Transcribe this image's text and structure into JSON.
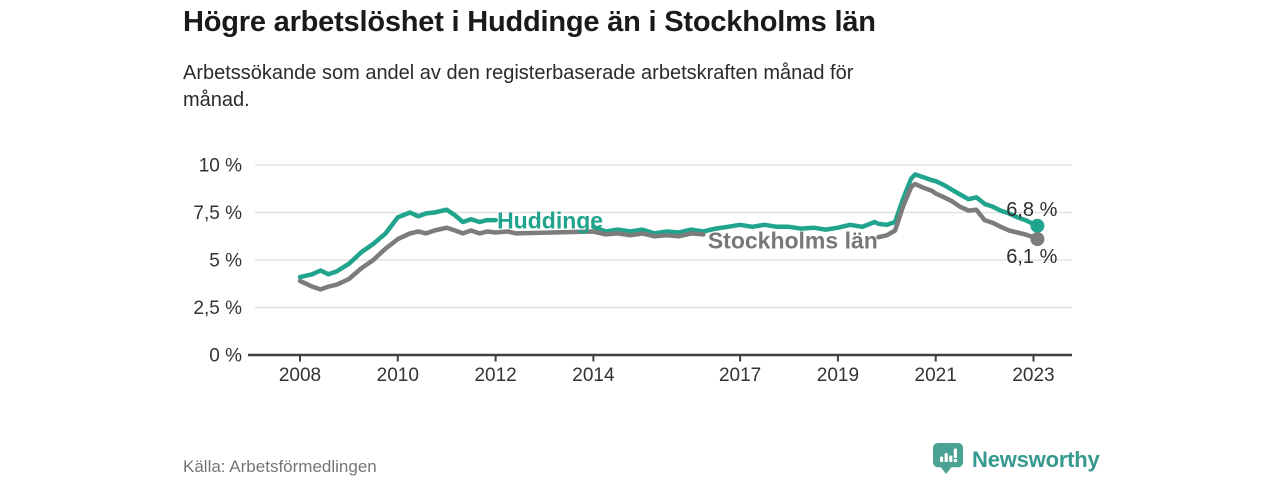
{
  "page": {
    "title": "Högre arbetslöshet i Huddinge än i Stockholms län",
    "subtitle": "Arbetssökande som andel av den registerbaserade arbetskraften månad för\nmånad.",
    "source": "Källa: Arbetsförmedlingen",
    "brand": "Newsworthy"
  },
  "colors": {
    "huddinge": "#20a48d",
    "stockholm": "#7c7c7c",
    "axis": "#3f3f3f",
    "grid": "#dedede",
    "tick_text": "#333333",
    "end_label_text": "#2e2e2e",
    "brand_teal": "#35998e"
  },
  "chart_data": {
    "type": "line",
    "title": "Högre arbetslöshet i Huddinge än i Stockholms län",
    "xlabel": "",
    "ylabel": "",
    "ylim": [
      0,
      10
    ],
    "xlim": [
      2006.94,
      2023.79
    ],
    "grid": true,
    "legend_position": "inline",
    "yticks": [
      {
        "value": 0,
        "label": "0 %"
      },
      {
        "value": 2.5,
        "label": "2,5 %"
      },
      {
        "value": 5,
        "label": "5 %"
      },
      {
        "value": 7.5,
        "label": "7,5 %"
      },
      {
        "value": 10,
        "label": "10 %"
      }
    ],
    "xticks": [
      {
        "value": 2008,
        "label": "2008"
      },
      {
        "value": 2010,
        "label": "2010"
      },
      {
        "value": 2012,
        "label": "2012"
      },
      {
        "value": 2014,
        "label": "2014"
      },
      {
        "value": 2017,
        "label": "2017"
      },
      {
        "value": 2019,
        "label": "2019"
      },
      {
        "value": 2021,
        "label": "2021"
      },
      {
        "value": 2023,
        "label": "2023"
      }
    ],
    "x": [
      2008.0,
      2008.25,
      2008.42,
      2008.58,
      2008.75,
      2009.0,
      2009.25,
      2009.5,
      2009.75,
      2010.0,
      2010.25,
      2010.42,
      2010.58,
      2010.75,
      2011.0,
      2011.17,
      2011.33,
      2011.5,
      2011.67,
      2011.83,
      2012.0,
      2012.25,
      2012.42,
      2014.0,
      2014.25,
      2014.5,
      2014.75,
      2015.0,
      2015.25,
      2015.5,
      2015.75,
      2016.0,
      2016.25,
      2016.5,
      2016.75,
      2017.0,
      2017.25,
      2017.5,
      2017.75,
      2018.0,
      2018.25,
      2018.5,
      2018.75,
      2019.0,
      2019.25,
      2019.5,
      2019.75,
      2019.83,
      2020.0,
      2020.17,
      2020.33,
      2020.5,
      2020.58,
      2020.75,
      2020.92,
      2021.0,
      2021.17,
      2021.33,
      2021.5,
      2021.67,
      2021.83,
      2022.0,
      2022.17,
      2022.33,
      2022.5,
      2022.67,
      2022.83,
      2023.0,
      2023.08
    ],
    "series": [
      {
        "name": "Huddinge",
        "color": "#20a48d",
        "final_value_label": "6,8 %",
        "values": [
          4.1,
          4.25,
          4.45,
          4.25,
          4.4,
          4.8,
          5.4,
          5.85,
          6.4,
          7.25,
          7.5,
          7.3,
          7.45,
          7.5,
          7.65,
          7.35,
          7.0,
          7.15,
          7.0,
          7.1,
          7.1,
          null,
          null,
          6.75,
          6.5,
          6.6,
          6.5,
          6.6,
          6.4,
          6.5,
          6.45,
          6.6,
          6.5,
          6.65,
          6.75,
          6.85,
          6.75,
          6.85,
          6.75,
          6.75,
          6.65,
          6.7,
          6.6,
          6.7,
          6.85,
          6.75,
          7.0,
          6.9,
          6.85,
          7.0,
          8.2,
          9.3,
          9.5,
          9.35,
          9.2,
          9.15,
          8.95,
          8.7,
          8.45,
          8.2,
          8.3,
          7.95,
          7.8,
          7.6,
          7.45,
          7.25,
          7.1,
          6.9,
          6.8
        ]
      },
      {
        "name": "Stockholms län",
        "color": "#7c7c7c",
        "final_value_label": "6,1 %",
        "values": [
          3.9,
          3.6,
          3.45,
          3.6,
          3.7,
          4.0,
          4.55,
          5.0,
          5.6,
          6.1,
          6.4,
          6.5,
          6.4,
          6.55,
          6.7,
          6.55,
          6.4,
          6.55,
          6.4,
          6.5,
          6.45,
          6.5,
          6.4,
          6.5,
          6.35,
          6.4,
          6.3,
          6.4,
          6.25,
          6.3,
          6.25,
          6.4,
          6.35,
          null,
          null,
          null,
          null,
          null,
          null,
          null,
          null,
          null,
          null,
          null,
          null,
          null,
          null,
          6.2,
          6.3,
          6.55,
          7.8,
          8.85,
          9.0,
          8.8,
          8.65,
          8.5,
          8.3,
          8.1,
          7.8,
          7.6,
          7.65,
          7.1,
          6.95,
          6.75,
          6.55,
          6.45,
          6.35,
          6.2,
          6.1
        ]
      }
    ],
    "series_labels": [
      {
        "text": "Huddinge",
        "year": 2012.03,
        "value": 6.65,
        "color": "#20a48d"
      },
      {
        "text": "Stockholms län",
        "year": 2016.34,
        "value": 5.6,
        "color": "#787878"
      }
    ],
    "end_labels": [
      {
        "text": "6,8 %",
        "series": 0,
        "position": "above"
      },
      {
        "text": "6,1 %",
        "series": 1,
        "position": "below"
      }
    ]
  }
}
